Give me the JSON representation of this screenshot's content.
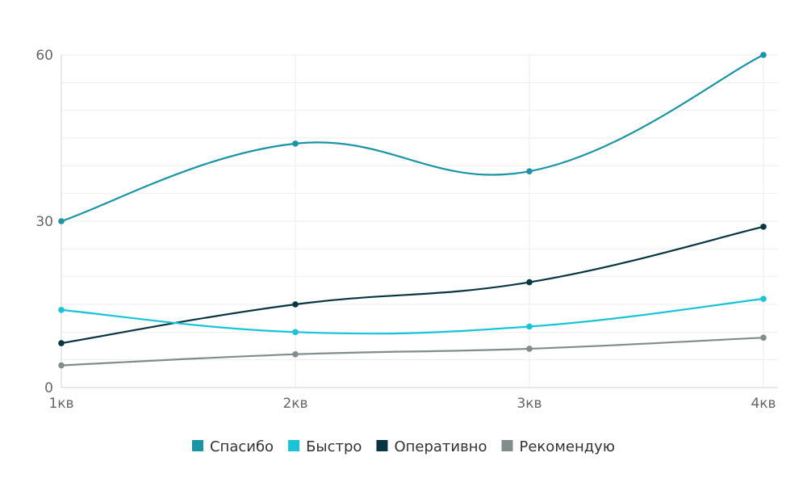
{
  "chart_data": {
    "type": "line",
    "categories": [
      "1кв",
      "2кв",
      "3кв",
      "4кв"
    ],
    "ylim": [
      0,
      60
    ],
    "yticks": [
      0,
      30,
      60
    ],
    "minor_gridlines": true,
    "smooth": true,
    "legend_position": "bottom",
    "series": [
      {
        "name": "Спасибо",
        "color": "#1a94a6",
        "values": [
          30,
          44,
          39,
          60
        ]
      },
      {
        "name": "Быстро",
        "color": "#19c3d9",
        "values": [
          14,
          10,
          11,
          16
        ]
      },
      {
        "name": "Оперативно",
        "color": "#083542",
        "values": [
          8,
          15,
          19,
          29
        ]
      },
      {
        "name": "Рекомендую",
        "color": "#828c8c",
        "values": [
          4,
          6,
          7,
          9
        ]
      }
    ]
  }
}
